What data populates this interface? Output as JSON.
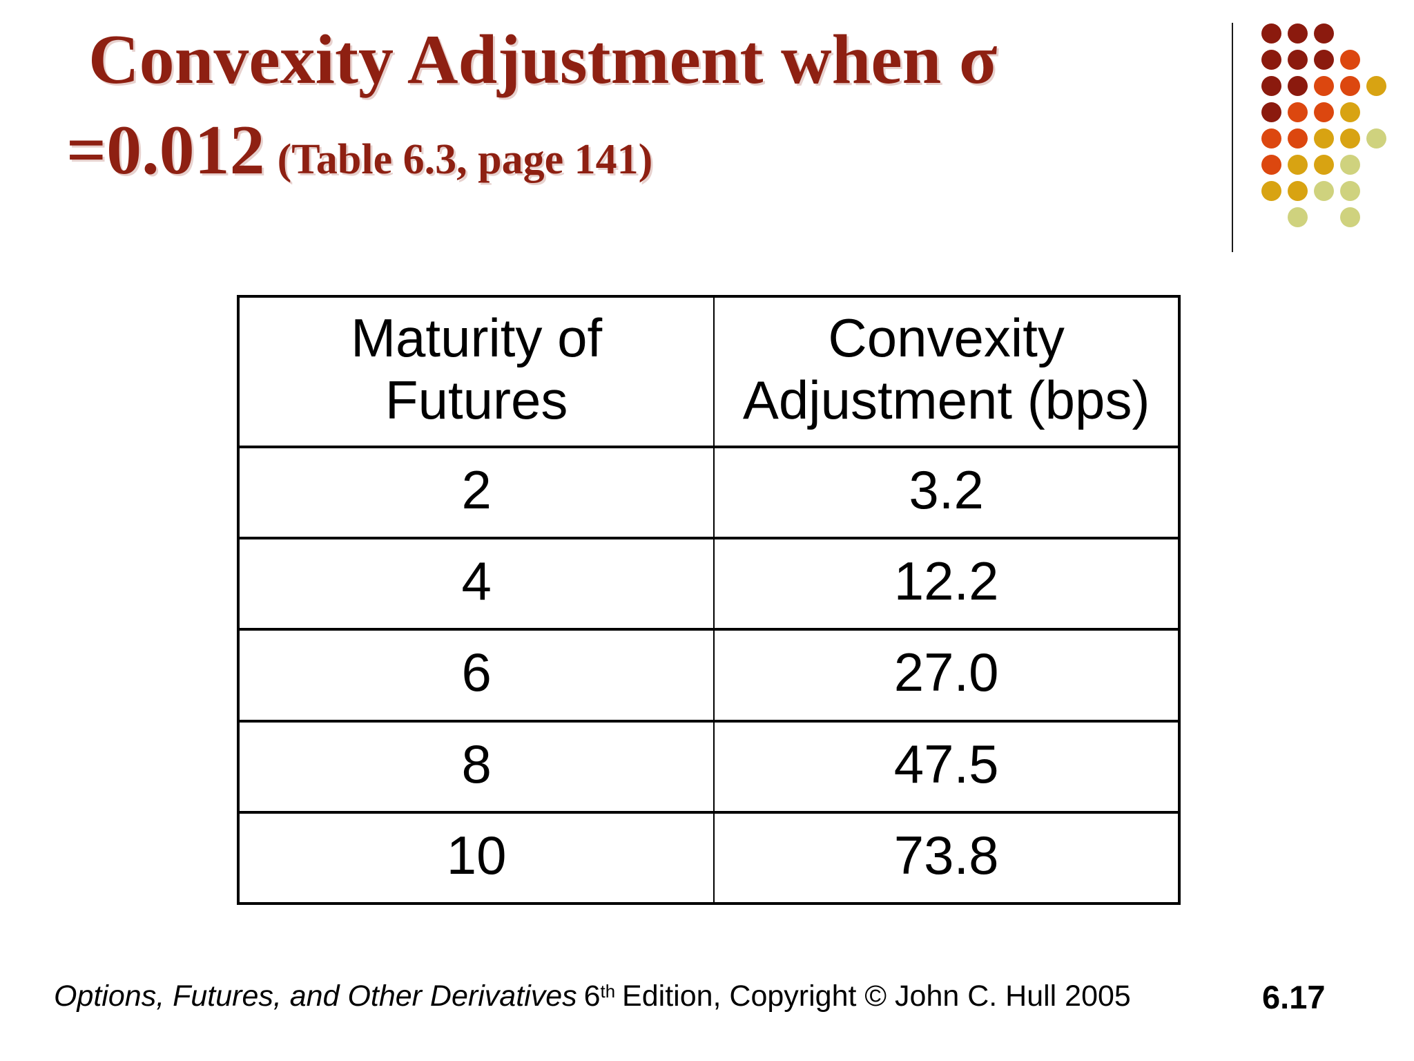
{
  "title": {
    "line1": "Convexity Adjustment when σ",
    "line2_value": "=0.012",
    "line2_note": "(Table 6.3, page 141)"
  },
  "table": {
    "headers": [
      {
        "line1": "Maturity of",
        "line2": "Futures"
      },
      {
        "line1": "Convexity",
        "line2": "Adjustment (bps)"
      }
    ],
    "rows": [
      {
        "maturity": "2",
        "adjustment": "3.2"
      },
      {
        "maturity": "4",
        "adjustment": "12.2"
      },
      {
        "maturity": "6",
        "adjustment": "27.0"
      },
      {
        "maturity": "8",
        "adjustment": "47.5"
      },
      {
        "maturity": "10",
        "adjustment": "73.8"
      }
    ]
  },
  "footer": {
    "book_title": "Options, Futures, and Other Derivatives",
    "edition_base": "6",
    "edition_sup": "th",
    "copyright_rest": "Edition, Copyright © John C. Hull 2005"
  },
  "page_number": "6.17",
  "colors": {
    "title_text": "#8E2012",
    "dot_maroon": "#8B1A0E",
    "dot_orange": "#DC470F",
    "dot_gold": "#D8A312",
    "dot_yellow_green": "#CFD27E"
  },
  "decoration": {
    "dot_pattern": [
      [
        "M",
        "M",
        "M",
        "",
        ""
      ],
      [
        "M",
        "M",
        "M",
        "O",
        ""
      ],
      [
        "M",
        "M",
        "O",
        "O",
        "G"
      ],
      [
        "M",
        "O",
        "O",
        "G",
        ""
      ],
      [
        "O",
        "O",
        "G",
        "G",
        "Y"
      ],
      [
        "O",
        "G",
        "G",
        "Y",
        ""
      ],
      [
        "G",
        "G",
        "Y",
        "Y",
        ""
      ],
      [
        "",
        "Y",
        "",
        "Y",
        ""
      ]
    ]
  }
}
